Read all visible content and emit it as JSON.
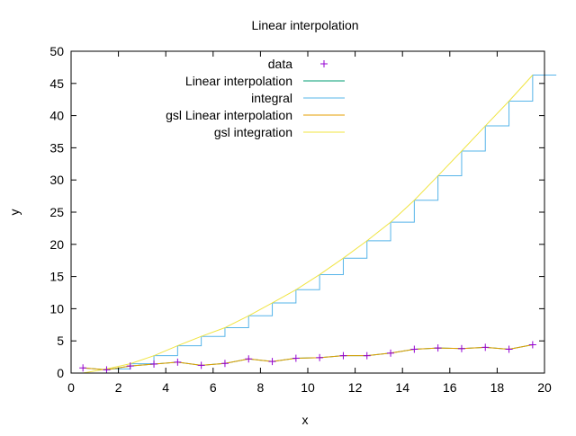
{
  "chart_data": {
    "type": "line",
    "title": "Linear interpolation",
    "xlabel": "x",
    "ylabel": "y",
    "xlim": [
      0,
      20
    ],
    "ylim": [
      0,
      50
    ],
    "xticks": [
      0,
      2,
      4,
      6,
      8,
      10,
      12,
      14,
      16,
      18,
      20
    ],
    "yticks": [
      0,
      5,
      10,
      15,
      20,
      25,
      30,
      35,
      40,
      45,
      50
    ],
    "legend_position": "top-center",
    "grid": false,
    "series": [
      {
        "name": "data",
        "style": "points",
        "color": "#9400d3",
        "x": [
          0.5,
          1.5,
          2.5,
          3.5,
          4.5,
          5.5,
          6.5,
          7.5,
          8.5,
          9.5,
          10.5,
          11.5,
          12.5,
          13.5,
          14.5,
          15.5,
          16.5,
          17.5,
          18.5,
          19.5
        ],
        "y": [
          0.8,
          0.5,
          1.1,
          1.4,
          1.7,
          1.2,
          1.5,
          2.2,
          1.8,
          2.3,
          2.4,
          2.7,
          2.7,
          3.1,
          3.7,
          3.9,
          3.8,
          4.0,
          3.7,
          4.4
        ]
      },
      {
        "name": "Linear interpolation",
        "style": "line",
        "color": "#009e73",
        "x": [
          0.5,
          1.5,
          2.5,
          3.5,
          4.5,
          5.5,
          6.5,
          7.5,
          8.5,
          9.5,
          10.5,
          11.5,
          12.5,
          13.5,
          14.5,
          15.5,
          16.5,
          17.5,
          18.5,
          19.5
        ],
        "y": [
          0.8,
          0.5,
          1.1,
          1.4,
          1.7,
          1.2,
          1.5,
          2.2,
          1.8,
          2.3,
          2.4,
          2.7,
          2.7,
          3.1,
          3.7,
          3.9,
          3.8,
          4.0,
          3.7,
          4.4
        ]
      },
      {
        "name": "integral",
        "style": "steps",
        "color": "#56b4e9",
        "x": [
          0.5,
          1.5,
          2.5,
          3.5,
          4.5,
          5.5,
          6.5,
          7.5,
          8.5,
          9.5,
          10.5,
          11.5,
          12.5,
          13.5,
          14.5,
          15.5,
          16.5,
          17.5,
          18.5,
          19.5
        ],
        "y": [
          0,
          0.65,
          1.45,
          2.7,
          4.25,
          5.7,
          7.05,
          8.9,
          10.9,
          12.95,
          15.3,
          17.85,
          20.55,
          23.45,
          26.85,
          30.65,
          34.5,
          38.4,
          42.25,
          46.3
        ]
      },
      {
        "name": "gsl Linear interpolation",
        "style": "line",
        "color": "#e69f00",
        "x": [
          0.5,
          1.5,
          2.5,
          3.5,
          4.5,
          5.5,
          6.5,
          7.5,
          8.5,
          9.5,
          10.5,
          11.5,
          12.5,
          13.5,
          14.5,
          15.5,
          16.5,
          17.5,
          18.5,
          19.5
        ],
        "y": [
          0.8,
          0.5,
          1.1,
          1.4,
          1.7,
          1.2,
          1.5,
          2.2,
          1.8,
          2.3,
          2.4,
          2.7,
          2.7,
          3.1,
          3.7,
          3.9,
          3.8,
          4.0,
          3.7,
          4.4
        ]
      },
      {
        "name": "gsl integration",
        "style": "line",
        "color": "#f0e442",
        "x": [
          0.5,
          1.5,
          2.5,
          3.5,
          4.5,
          5.5,
          6.5,
          7.5,
          8.5,
          9.5,
          10.5,
          11.5,
          12.5,
          13.5,
          14.5,
          15.5,
          16.5,
          17.5,
          18.5,
          19.5
        ],
        "y": [
          0,
          0.65,
          1.45,
          2.7,
          4.25,
          5.7,
          7.05,
          8.9,
          10.9,
          12.95,
          15.3,
          17.85,
          20.55,
          23.45,
          26.85,
          30.65,
          34.5,
          38.4,
          42.25,
          46.3
        ]
      }
    ]
  }
}
